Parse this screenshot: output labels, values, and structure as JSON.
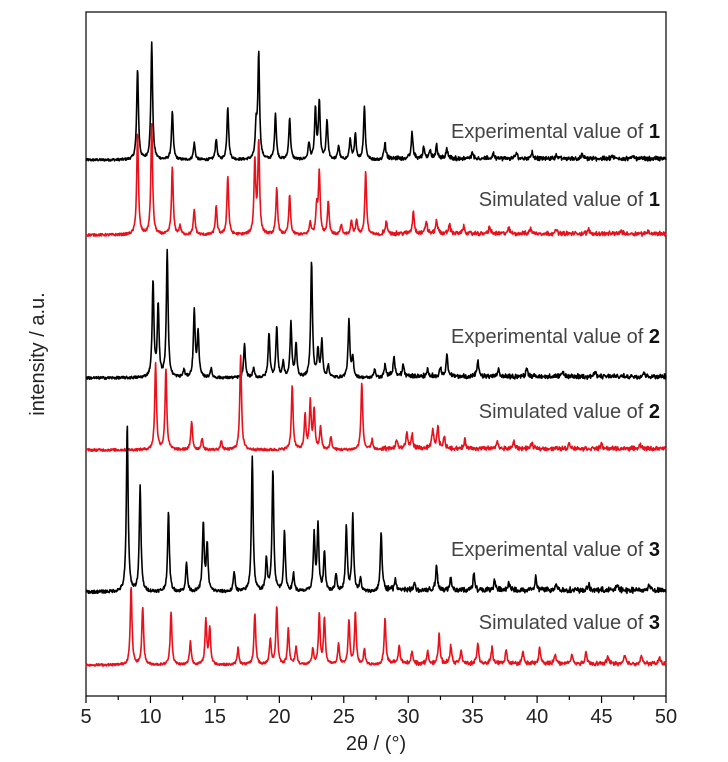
{
  "chart_data": {
    "type": "line",
    "title": "",
    "xlabel": "2θ / (°)",
    "ylabel": "intensity / a.u.",
    "xlim": [
      5,
      50
    ],
    "xticks": [
      "5",
      "10",
      "15",
      "20",
      "25",
      "30",
      "35",
      "40",
      "45",
      "50"
    ],
    "legend_position": "none",
    "grid": false,
    "series": [
      {
        "name": "Experimental value of 1",
        "label_prefix": "Experimental value of ",
        "label_bold": "1",
        "color": "#000000",
        "peaks": [
          [
            9.0,
            0.65
          ],
          [
            10.1,
            0.83
          ],
          [
            11.7,
            0.34
          ],
          [
            13.4,
            0.12
          ],
          [
            15.1,
            0.15
          ],
          [
            16.0,
            0.38
          ],
          [
            18.2,
            0.22
          ],
          [
            18.4,
            0.75
          ],
          [
            19.7,
            0.33
          ],
          [
            20.8,
            0.3
          ],
          [
            22.3,
            0.12
          ],
          [
            22.8,
            0.35
          ],
          [
            23.1,
            0.41
          ],
          [
            23.7,
            0.28
          ],
          [
            24.6,
            0.1
          ],
          [
            25.5,
            0.15
          ],
          [
            25.9,
            0.18
          ],
          [
            26.6,
            0.38
          ],
          [
            28.2,
            0.12
          ],
          [
            30.3,
            0.18
          ],
          [
            31.2,
            0.08
          ],
          [
            31.7,
            0.06
          ],
          [
            32.2,
            0.1
          ],
          [
            33.0,
            0.07
          ],
          [
            35.0,
            0.05
          ],
          [
            36.6,
            0.04
          ],
          [
            38.4,
            0.04
          ],
          [
            39.6,
            0.05
          ],
          [
            41.5,
            0.03
          ],
          [
            43.5,
            0.03
          ],
          [
            45.8,
            0.02
          ],
          [
            47.5,
            0.02
          ]
        ]
      },
      {
        "name": "Simulated value of 1",
        "label_prefix": "Simulated value of ",
        "label_bold": "1",
        "color": "#e8101a",
        "peaks": [
          [
            9.0,
            0.72
          ],
          [
            10.1,
            0.78
          ],
          [
            11.7,
            0.48
          ],
          [
            12.3,
            0.06
          ],
          [
            13.4,
            0.18
          ],
          [
            15.1,
            0.2
          ],
          [
            16.0,
            0.42
          ],
          [
            18.1,
            0.52
          ],
          [
            18.4,
            0.66
          ],
          [
            19.8,
            0.33
          ],
          [
            20.8,
            0.28
          ],
          [
            22.4,
            0.09
          ],
          [
            22.9,
            0.2
          ],
          [
            23.1,
            0.44
          ],
          [
            23.8,
            0.24
          ],
          [
            24.8,
            0.07
          ],
          [
            25.6,
            0.1
          ],
          [
            26.0,
            0.11
          ],
          [
            26.7,
            0.45
          ],
          [
            28.3,
            0.08
          ],
          [
            30.4,
            0.16
          ],
          [
            31.4,
            0.09
          ],
          [
            32.2,
            0.1
          ],
          [
            33.2,
            0.07
          ],
          [
            34.3,
            0.05
          ],
          [
            36.3,
            0.05
          ],
          [
            37.8,
            0.04
          ],
          [
            39.5,
            0.04
          ],
          [
            41.5,
            0.03
          ],
          [
            44.0,
            0.03
          ],
          [
            46.5,
            0.02
          ],
          [
            48.6,
            0.02
          ]
        ]
      },
      {
        "name": "Experimental value of 2",
        "label_prefix": "Experimental value of ",
        "label_bold": "2",
        "color": "#000000",
        "peaks": [
          [
            10.2,
            0.64
          ],
          [
            10.6,
            0.48
          ],
          [
            11.3,
            0.85
          ],
          [
            12.6,
            0.05
          ],
          [
            13.4,
            0.45
          ],
          [
            13.7,
            0.3
          ],
          [
            14.7,
            0.06
          ],
          [
            17.3,
            0.22
          ],
          [
            18.0,
            0.06
          ],
          [
            19.2,
            0.3
          ],
          [
            19.8,
            0.34
          ],
          [
            20.3,
            0.1
          ],
          [
            20.9,
            0.36
          ],
          [
            21.3,
            0.22
          ],
          [
            22.5,
            0.78
          ],
          [
            23.0,
            0.18
          ],
          [
            23.3,
            0.24
          ],
          [
            23.8,
            0.08
          ],
          [
            25.4,
            0.38
          ],
          [
            25.7,
            0.13
          ],
          [
            27.4,
            0.06
          ],
          [
            28.2,
            0.07
          ],
          [
            28.9,
            0.14
          ],
          [
            29.6,
            0.08
          ],
          [
            31.5,
            0.05
          ],
          [
            32.5,
            0.06
          ],
          [
            33.0,
            0.15
          ],
          [
            35.4,
            0.1
          ],
          [
            37.0,
            0.04
          ],
          [
            39.2,
            0.06
          ],
          [
            42.0,
            0.03
          ],
          [
            44.5,
            0.03
          ],
          [
            48.3,
            0.03
          ]
        ]
      },
      {
        "name": "Simulated value of 2",
        "label_prefix": "Simulated value of ",
        "label_bold": "2",
        "color": "#e8101a",
        "peaks": [
          [
            10.4,
            0.62
          ],
          [
            11.2,
            0.58
          ],
          [
            13.2,
            0.2
          ],
          [
            14.0,
            0.08
          ],
          [
            15.5,
            0.06
          ],
          [
            17.0,
            0.68
          ],
          [
            21.0,
            0.46
          ],
          [
            22.0,
            0.24
          ],
          [
            22.4,
            0.34
          ],
          [
            22.7,
            0.28
          ],
          [
            23.2,
            0.16
          ],
          [
            24.0,
            0.09
          ],
          [
            26.4,
            0.48
          ],
          [
            27.2,
            0.07
          ],
          [
            29.1,
            0.06
          ],
          [
            29.9,
            0.11
          ],
          [
            30.3,
            0.1
          ],
          [
            31.9,
            0.14
          ],
          [
            32.3,
            0.16
          ],
          [
            32.8,
            0.08
          ],
          [
            34.4,
            0.06
          ],
          [
            36.9,
            0.05
          ],
          [
            38.2,
            0.05
          ],
          [
            39.6,
            0.04
          ],
          [
            42.5,
            0.04
          ],
          [
            45.0,
            0.03
          ],
          [
            48.0,
            0.03
          ]
        ]
      },
      {
        "name": "Experimental value of 3",
        "label_prefix": "Experimental value of ",
        "label_bold": "3",
        "color": "#000000",
        "peaks": [
          [
            8.2,
            0.93
          ],
          [
            9.2,
            0.58
          ],
          [
            11.4,
            0.44
          ],
          [
            12.8,
            0.16
          ],
          [
            14.1,
            0.38
          ],
          [
            14.4,
            0.26
          ],
          [
            16.5,
            0.11
          ],
          [
            17.9,
            0.75
          ],
          [
            19.0,
            0.18
          ],
          [
            19.5,
            0.68
          ],
          [
            20.4,
            0.33
          ],
          [
            21.1,
            0.1
          ],
          [
            22.7,
            0.31
          ],
          [
            23.0,
            0.36
          ],
          [
            23.5,
            0.22
          ],
          [
            24.4,
            0.1
          ],
          [
            25.2,
            0.36
          ],
          [
            25.7,
            0.42
          ],
          [
            26.3,
            0.07
          ],
          [
            27.9,
            0.33
          ],
          [
            29.0,
            0.06
          ],
          [
            30.5,
            0.04
          ],
          [
            32.2,
            0.14
          ],
          [
            33.3,
            0.07
          ],
          [
            35.1,
            0.1
          ],
          [
            36.7,
            0.05
          ],
          [
            37.8,
            0.04
          ],
          [
            39.9,
            0.07
          ],
          [
            41.5,
            0.04
          ],
          [
            44.0,
            0.03
          ],
          [
            46.2,
            0.03
          ],
          [
            48.7,
            0.03
          ]
        ]
      },
      {
        "name": "Simulated value of 3",
        "label_prefix": "Simulated value of ",
        "label_bold": "3",
        "color": "#e8101a",
        "peaks": [
          [
            8.5,
            0.6
          ],
          [
            9.4,
            0.45
          ],
          [
            11.6,
            0.41
          ],
          [
            13.1,
            0.18
          ],
          [
            14.3,
            0.34
          ],
          [
            14.6,
            0.28
          ],
          [
            16.8,
            0.13
          ],
          [
            18.1,
            0.4
          ],
          [
            19.3,
            0.2
          ],
          [
            19.8,
            0.45
          ],
          [
            20.7,
            0.28
          ],
          [
            21.3,
            0.14
          ],
          [
            22.6,
            0.12
          ],
          [
            23.1,
            0.38
          ],
          [
            23.5,
            0.36
          ],
          [
            24.6,
            0.16
          ],
          [
            25.4,
            0.34
          ],
          [
            25.9,
            0.4
          ],
          [
            26.6,
            0.12
          ],
          [
            28.2,
            0.35
          ],
          [
            29.3,
            0.14
          ],
          [
            30.3,
            0.1
          ],
          [
            31.5,
            0.09
          ],
          [
            32.4,
            0.22
          ],
          [
            33.3,
            0.14
          ],
          [
            34.1,
            0.1
          ],
          [
            35.4,
            0.16
          ],
          [
            36.5,
            0.12
          ],
          [
            37.6,
            0.1
          ],
          [
            38.9,
            0.09
          ],
          [
            40.2,
            0.12
          ],
          [
            41.4,
            0.08
          ],
          [
            42.7,
            0.07
          ],
          [
            43.8,
            0.08
          ],
          [
            45.5,
            0.06
          ],
          [
            46.8,
            0.07
          ],
          [
            48.1,
            0.06
          ],
          [
            49.5,
            0.05
          ]
        ]
      }
    ]
  }
}
